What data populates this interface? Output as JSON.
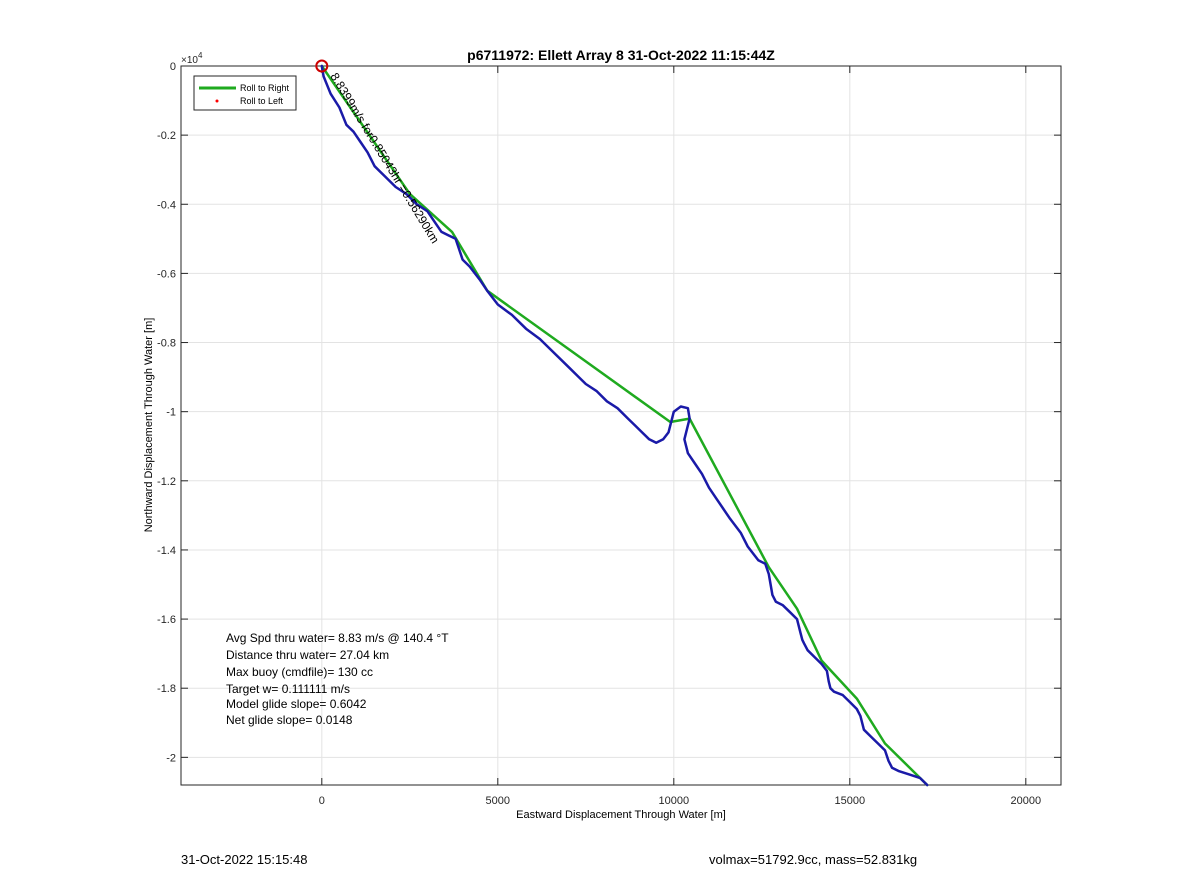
{
  "chart_data": {
    "type": "line",
    "title": "p6711972: Ellett Array 8 31-Oct-2022 11:15:44Z",
    "xlabel": "Eastward Displacement Through Water [m]",
    "ylabel": "Northward Displacement Through Water [m]",
    "y_exponent_label": "×10",
    "y_exponent_power": "4",
    "xlim": [
      -4000,
      21000
    ],
    "ylim": [
      -2.08,
      0
    ],
    "x_ticks": [
      0,
      5000,
      10000,
      15000,
      20000
    ],
    "x_tick_labels": [
      "0",
      "5000",
      "10000",
      "15000",
      "20000"
    ],
    "y_ticks": [
      0,
      -0.2,
      -0.4,
      -0.6,
      -0.8,
      -1,
      -1.2,
      -1.4,
      -1.6,
      -1.8,
      -2
    ],
    "y_tick_labels": [
      "0",
      "-0.2",
      "-0.4",
      "-0.6",
      "-0.8",
      "-1",
      "-1.2",
      "-1.4",
      "-1.6",
      "-1.8",
      "-2"
    ],
    "grid": true,
    "legend_placement": "top-left",
    "legend": [
      {
        "label": "Roll to Right",
        "color": "#1faa1f",
        "marker": "line"
      },
      {
        "label": "Roll to Left",
        "color": "#ff0000",
        "marker": "dot"
      }
    ],
    "series": [
      {
        "name": "Roll to Right",
        "color": "#1faa1f",
        "x": [
          0,
          2500,
          3700,
          4700,
          9900,
          10450,
          12700,
          13500,
          14200,
          15200,
          16000,
          17200
        ],
        "y": [
          0,
          -0.37,
          -0.48,
          -0.65,
          -1.03,
          -1.02,
          -1.45,
          -1.57,
          -1.72,
          -1.83,
          -1.96,
          -2.08
        ]
      },
      {
        "name": "",
        "color": "#1a1aa8",
        "x": [
          0,
          50,
          250,
          500,
          700,
          900,
          1100,
          1300,
          1500,
          1800,
          2100,
          2400,
          2700,
          3000,
          3200,
          3400,
          3600,
          3800,
          3900,
          4000,
          4200,
          4350,
          4500,
          4700,
          5000,
          5400,
          5800,
          6200,
          6500,
          7000,
          7300,
          7500,
          7800,
          8100,
          8400,
          8700,
          8900,
          9100,
          9300,
          9500,
          9700,
          9850,
          10000,
          10200,
          10400,
          10450,
          10300,
          10400,
          10600,
          10800,
          11000,
          11200,
          11400,
          11600,
          11900,
          12100,
          12400,
          12600,
          12700,
          12750,
          12800,
          12900,
          13100,
          13300,
          13500,
          13600,
          13650,
          13700,
          13800,
          14000,
          14200,
          14350,
          14400,
          14450,
          14550,
          14800,
          15000,
          15200,
          15300,
          15400,
          15600,
          15800,
          16000,
          16100,
          16200,
          16400,
          16700,
          17000,
          17200
        ],
        "y": [
          0,
          -0.03,
          -0.08,
          -0.12,
          -0.17,
          -0.19,
          -0.22,
          -0.25,
          -0.29,
          -0.32,
          -0.35,
          -0.37,
          -0.4,
          -0.42,
          -0.45,
          -0.48,
          -0.49,
          -0.5,
          -0.53,
          -0.56,
          -0.58,
          -0.6,
          -0.62,
          -0.65,
          -0.69,
          -0.72,
          -0.76,
          -0.79,
          -0.82,
          -0.87,
          -0.9,
          -0.92,
          -0.94,
          -0.97,
          -0.99,
          -1.02,
          -1.04,
          -1.06,
          -1.08,
          -1.09,
          -1.08,
          -1.06,
          -1.0,
          -0.985,
          -0.99,
          -1.02,
          -1.08,
          -1.12,
          -1.15,
          -1.18,
          -1.22,
          -1.25,
          -1.28,
          -1.31,
          -1.35,
          -1.39,
          -1.43,
          -1.44,
          -1.47,
          -1.5,
          -1.53,
          -1.55,
          -1.56,
          -1.58,
          -1.6,
          -1.64,
          -1.66,
          -1.67,
          -1.69,
          -1.71,
          -1.73,
          -1.75,
          -1.78,
          -1.8,
          -1.81,
          -1.82,
          -1.84,
          -1.86,
          -1.88,
          -1.92,
          -1.94,
          -1.96,
          -1.98,
          -2.01,
          -2.03,
          -2.04,
          -2.05,
          -2.06,
          -2.08
        ]
      }
    ],
    "start_marker": {
      "x": 0,
      "y": 0,
      "color": "#cc0000"
    },
    "rotated_annotation": "8.8399m/s for0.85043hr =0.56290km",
    "stats_lines": [
      "Avg Spd thru water=  8.83 m/s @ 140.4 °T",
      "Distance thru water= 27.04 km",
      "Max buoy (cmdfile)= 130 cc",
      "Target w= 0.111111 m/s",
      "Model glide slope= 0.6042",
      "Net glide slope= 0.0148"
    ]
  },
  "footer": {
    "left": "31-Oct-2022 15:15:48",
    "right": "volmax=51792.9cc, mass=52.831kg"
  }
}
